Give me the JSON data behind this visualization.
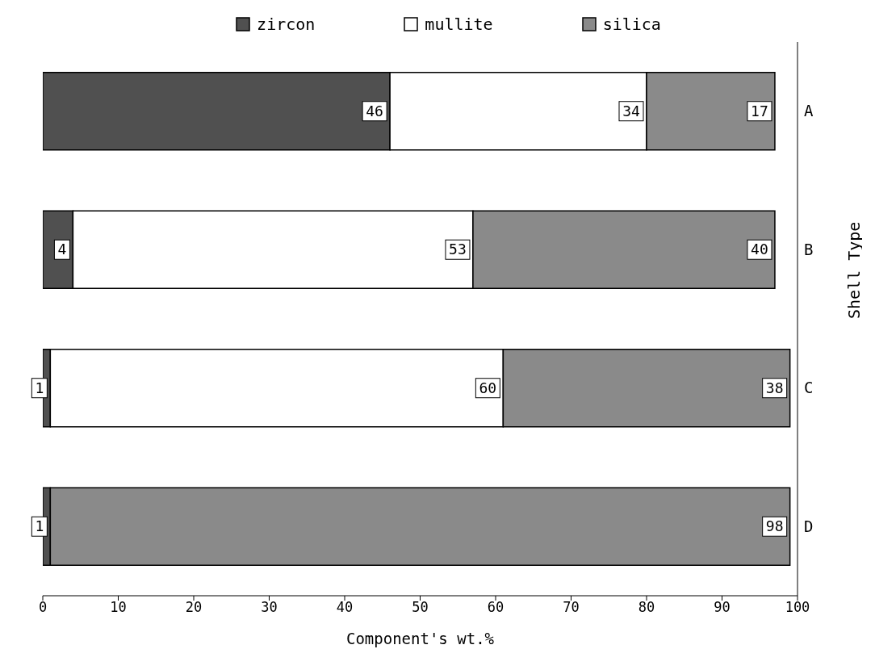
{
  "chart_data": {
    "type": "bar",
    "orientation": "horizontal",
    "stacked": true,
    "categories": [
      "A",
      "B",
      "C",
      "D"
    ],
    "series": [
      {
        "name": "zircon",
        "color": "#505050",
        "values": [
          46,
          4,
          1,
          1
        ]
      },
      {
        "name": "mullite",
        "color": "#ffffff",
        "values": [
          34,
          53,
          60,
          null
        ]
      },
      {
        "name": "silica",
        "color": "#8a8a8a",
        "values": [
          17,
          40,
          38,
          98
        ]
      }
    ],
    "xlim": [
      0,
      100
    ],
    "xticks": [
      0,
      10,
      20,
      30,
      40,
      50,
      60,
      70,
      80,
      90,
      100
    ],
    "xlabel": "Component's wt.%",
    "ylabel": "Shell Type",
    "legend": "top",
    "data_labels": true
  }
}
